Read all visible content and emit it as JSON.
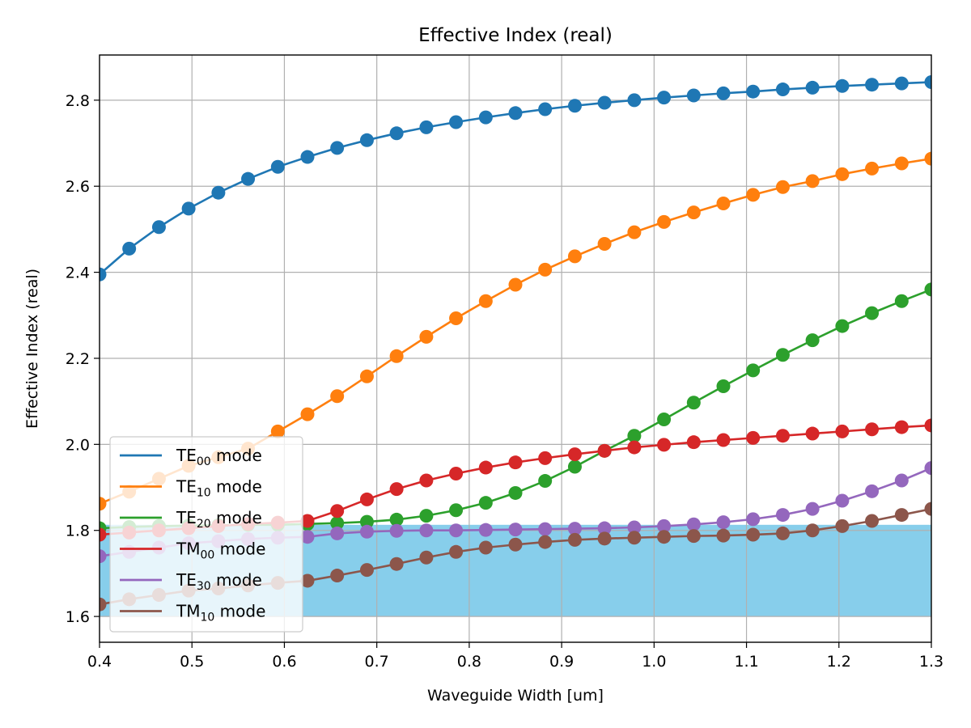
{
  "chart_data": {
    "type": "line",
    "title": "Effective Index (real)",
    "xlabel": "Waveguide Width [um]",
    "ylabel": "Effective Index (real)",
    "xlim": [
      0.4,
      1.3
    ],
    "ylim": [
      1.54,
      2.905
    ],
    "xticks": [
      "0.4",
      "0.5",
      "0.6",
      "0.7",
      "0.8",
      "0.9",
      "1.0",
      "1.1",
      "1.2",
      "1.3"
    ],
    "yticks": [
      "1.6",
      "1.8",
      "2.0",
      "2.2",
      "2.4",
      "2.6",
      "2.8"
    ],
    "grid": true,
    "legend_position": "lower-left",
    "shaded_band": {
      "y0": 1.6,
      "y1": 1.813,
      "color": "#87ceeb"
    },
    "x": [
      0.4,
      0.4321,
      0.4643,
      0.4964,
      0.5286,
      0.5607,
      0.5929,
      0.625,
      0.6571,
      0.6893,
      0.7214,
      0.7536,
      0.7857,
      0.8179,
      0.85,
      0.8821,
      0.9143,
      0.9464,
      0.9786,
      1.0107,
      1.0429,
      1.075,
      1.1071,
      1.1393,
      1.1714,
      1.2036,
      1.2357,
      1.2679,
      1.3
    ],
    "series": [
      {
        "name": "TE00 mode",
        "label_main": "TE",
        "label_sub": "00",
        "label_suffix": " mode",
        "color": "#1f77b4",
        "values": [
          2.395,
          2.455,
          2.505,
          2.548,
          2.585,
          2.617,
          2.645,
          2.668,
          2.689,
          2.707,
          2.723,
          2.737,
          2.749,
          2.76,
          2.77,
          2.779,
          2.787,
          2.794,
          2.8,
          2.806,
          2.811,
          2.816,
          2.82,
          2.825,
          2.829,
          2.833,
          2.836,
          2.839,
          2.842
        ]
      },
      {
        "name": "TE10 mode",
        "label_main": "TE",
        "label_sub": "10",
        "label_suffix": " mode",
        "color": "#ff7f0e",
        "values": [
          1.862,
          1.89,
          1.92,
          1.95,
          1.97,
          1.99,
          2.03,
          2.07,
          2.112,
          2.158,
          2.205,
          2.25,
          2.293,
          2.333,
          2.371,
          2.406,
          2.437,
          2.466,
          2.493,
          2.517,
          2.539,
          2.56,
          2.58,
          2.598,
          2.612,
          2.628,
          2.641,
          2.653,
          2.664
        ]
      },
      {
        "name": "TE20 mode",
        "label_main": "TE",
        "label_sub": "20",
        "label_suffix": " mode",
        "color": "#2ca02c",
        "values": [
          1.805,
          1.808,
          1.81,
          1.811,
          1.812,
          1.813,
          1.813,
          1.815,
          1.817,
          1.82,
          1.825,
          1.834,
          1.847,
          1.864,
          1.887,
          1.915,
          1.948,
          1.985,
          2.02,
          2.058,
          2.097,
          2.135,
          2.172,
          2.208,
          2.242,
          2.275,
          2.305,
          2.333,
          2.36
        ]
      },
      {
        "name": "TM00 mode",
        "label_main": "TM",
        "label_sub": "00",
        "label_suffix": " mode",
        "color": "#d62728",
        "values": [
          1.79,
          1.795,
          1.8,
          1.805,
          1.81,
          1.815,
          1.818,
          1.822,
          1.845,
          1.872,
          1.896,
          1.916,
          1.932,
          1.946,
          1.958,
          1.968,
          1.977,
          1.985,
          1.993,
          1.999,
          2.005,
          2.01,
          2.015,
          2.02,
          2.025,
          2.03,
          2.035,
          2.04,
          2.044
        ]
      },
      {
        "name": "TE30 mode",
        "label_main": "TE",
        "label_sub": "30",
        "label_suffix": " mode",
        "color": "#9467bd",
        "values": [
          1.74,
          1.75,
          1.76,
          1.77,
          1.775,
          1.78,
          1.783,
          1.785,
          1.793,
          1.797,
          1.799,
          1.8,
          1.8,
          1.801,
          1.802,
          1.803,
          1.804,
          1.805,
          1.807,
          1.81,
          1.814,
          1.819,
          1.826,
          1.836,
          1.85,
          1.869,
          1.891,
          1.916,
          1.945
        ]
      },
      {
        "name": "TM10 mode",
        "label_main": "TM",
        "label_sub": "10",
        "label_suffix": " mode",
        "color": "#8c564b",
        "values": [
          1.628,
          1.64,
          1.65,
          1.66,
          1.665,
          1.672,
          1.678,
          1.683,
          1.695,
          1.708,
          1.722,
          1.737,
          1.75,
          1.76,
          1.767,
          1.773,
          1.778,
          1.781,
          1.783,
          1.785,
          1.787,
          1.788,
          1.79,
          1.793,
          1.8,
          1.81,
          1.822,
          1.836,
          1.85
        ]
      }
    ]
  }
}
